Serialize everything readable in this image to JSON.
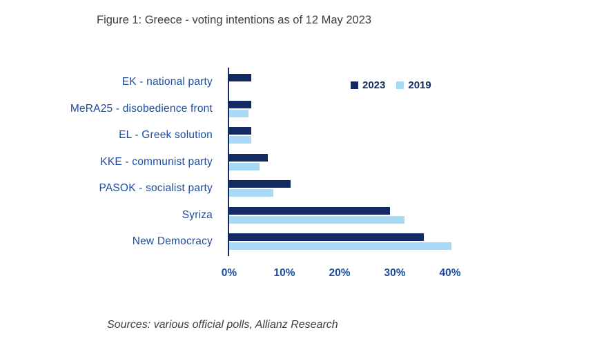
{
  "title": "Figure 1: Greece - voting intentions as of 12 May 2023",
  "source": "Sources: various official polls, Allianz Research",
  "colors": {
    "navy": "#132a63",
    "light_blue": "#a8d9f5",
    "label_blue": "#1c4da0",
    "text_gray": "#3c3c3c"
  },
  "chart_data": {
    "type": "bar",
    "orientation": "horizontal",
    "title": "Figure 1: Greece - voting intentions as of 12 May 2023",
    "categories": [
      "EK - national party",
      "MeRA25 - disobedience front",
      "EL - Greek solution",
      "KKE - communist party",
      "PASOK - socialist party",
      "Syriza",
      "New Democracy"
    ],
    "series": [
      {
        "name": "2023",
        "color": "#132a63",
        "values": [
          4,
          4,
          4,
          7,
          11,
          29,
          35
        ]
      },
      {
        "name": "2019",
        "color": "#a8d9f5",
        "values": [
          0,
          3.5,
          4,
          5.5,
          8,
          31.5,
          40
        ]
      }
    ],
    "xticks": [
      "0%",
      "10%",
      "20%",
      "30%",
      "40%"
    ],
    "xlim": [
      0,
      40
    ],
    "grid": false,
    "legend_position": "top-right"
  }
}
